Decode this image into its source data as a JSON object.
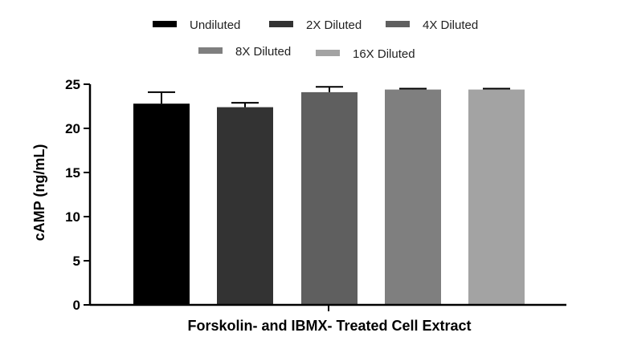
{
  "chart_data": {
    "type": "bar",
    "categories": [
      "Forskolin- and IBMX- Treated Cell Extract"
    ],
    "series": [
      {
        "name": "Undiluted",
        "values": [
          22.8
        ],
        "error": [
          1.3
        ],
        "color": "#000000"
      },
      {
        "name": "2X Diluted",
        "values": [
          22.4
        ],
        "error": [
          0.5
        ],
        "color": "#333333"
      },
      {
        "name": "4X Diluted",
        "values": [
          24.1
        ],
        "error": [
          0.6
        ],
        "color": "#5f5f5f"
      },
      {
        "name": "8X Diluted",
        "values": [
          24.4
        ],
        "error": [
          0.1
        ],
        "color": "#7f7f7f"
      },
      {
        "name": "16X Diluted",
        "values": [
          24.4
        ],
        "error": [
          0.1
        ],
        "color": "#a3a3a3"
      }
    ],
    "xlabel": "Forskolin- and IBMX- Treated Cell Extract",
    "ylabel": "cAMP (ng/mL)",
    "ylim": [
      0,
      25
    ],
    "yticks": [
      0,
      5,
      10,
      15,
      20,
      25
    ],
    "grid": false,
    "legend_position": "top"
  }
}
